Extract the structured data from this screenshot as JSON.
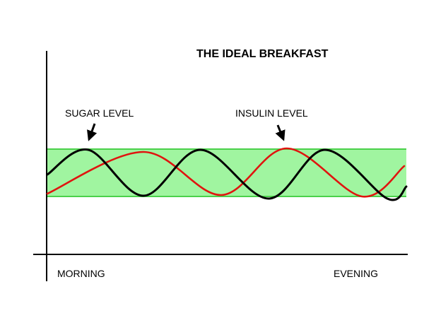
{
  "diagram": {
    "title": "THE IDEAL BREAKFAST",
    "x_start_label": "MORNING",
    "x_end_label": "EVENING",
    "sugar_label": "SUGAR LEVEL",
    "insulin_label": "INSULIN LEVEL"
  },
  "colors": {
    "band_fill": "#a0f5a0",
    "band_edge": "#4bd14b",
    "sugar_curve": "#000000",
    "insulin_curve": "#e0140f",
    "axes": "#000000"
  }
}
